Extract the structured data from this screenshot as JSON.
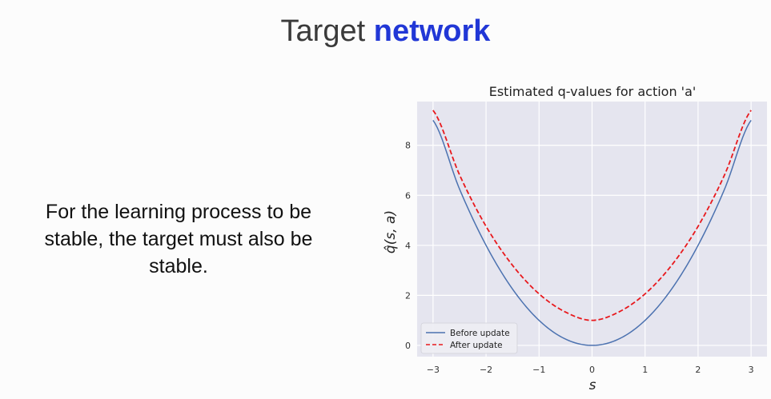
{
  "slide": {
    "title_plain": "Target",
    "title_accent": "network",
    "body_line1": "For the learning process to be",
    "body_line2": "stable, the target must also be",
    "body_line3": "stable."
  },
  "colors": {
    "title_accent": "#2137d6",
    "plot_background": "#e5e5ef",
    "series_before": "#4c72b0",
    "series_after": "#e8191d"
  },
  "chart_data": {
    "type": "line",
    "title": "Estimated q-values for action 'a'",
    "xlabel": "s",
    "ylabel": "q̂(s, a)",
    "xlim": [
      -3.3,
      3.3
    ],
    "ylim": [
      -0.45,
      9.75
    ],
    "xticks": [
      -3,
      -2,
      -1,
      0,
      1,
      2,
      3
    ],
    "xtick_labels": [
      "−3",
      "−2",
      "−1",
      "0",
      "1",
      "2",
      "3"
    ],
    "yticks": [
      0,
      2,
      4,
      6,
      8
    ],
    "ytick_labels": [
      "0",
      "2",
      "4",
      "6",
      "8"
    ],
    "grid": true,
    "legend_position": "lower-left",
    "series": [
      {
        "name": "Before update",
        "style": "solid",
        "x": [
          -3,
          -2.5,
          -2,
          -1.5,
          -1,
          -0.5,
          0,
          0.5,
          1,
          1.5,
          2,
          2.5,
          3
        ],
        "y": [
          9,
          6.25,
          4,
          2.25,
          1,
          0.25,
          0,
          0.25,
          1,
          2.25,
          4,
          6.25,
          9
        ]
      },
      {
        "name": "After update",
        "style": "dashed",
        "x": [
          -3,
          -2.5,
          -2,
          -1.5,
          -1,
          -0.5,
          0,
          0.5,
          1,
          1.5,
          2,
          2.5,
          3
        ],
        "y": [
          9.4,
          6.82,
          4.76,
          3.2,
          2.06,
          1.33,
          1.0,
          1.33,
          2.06,
          3.2,
          4.76,
          6.82,
          9.4
        ]
      }
    ]
  }
}
